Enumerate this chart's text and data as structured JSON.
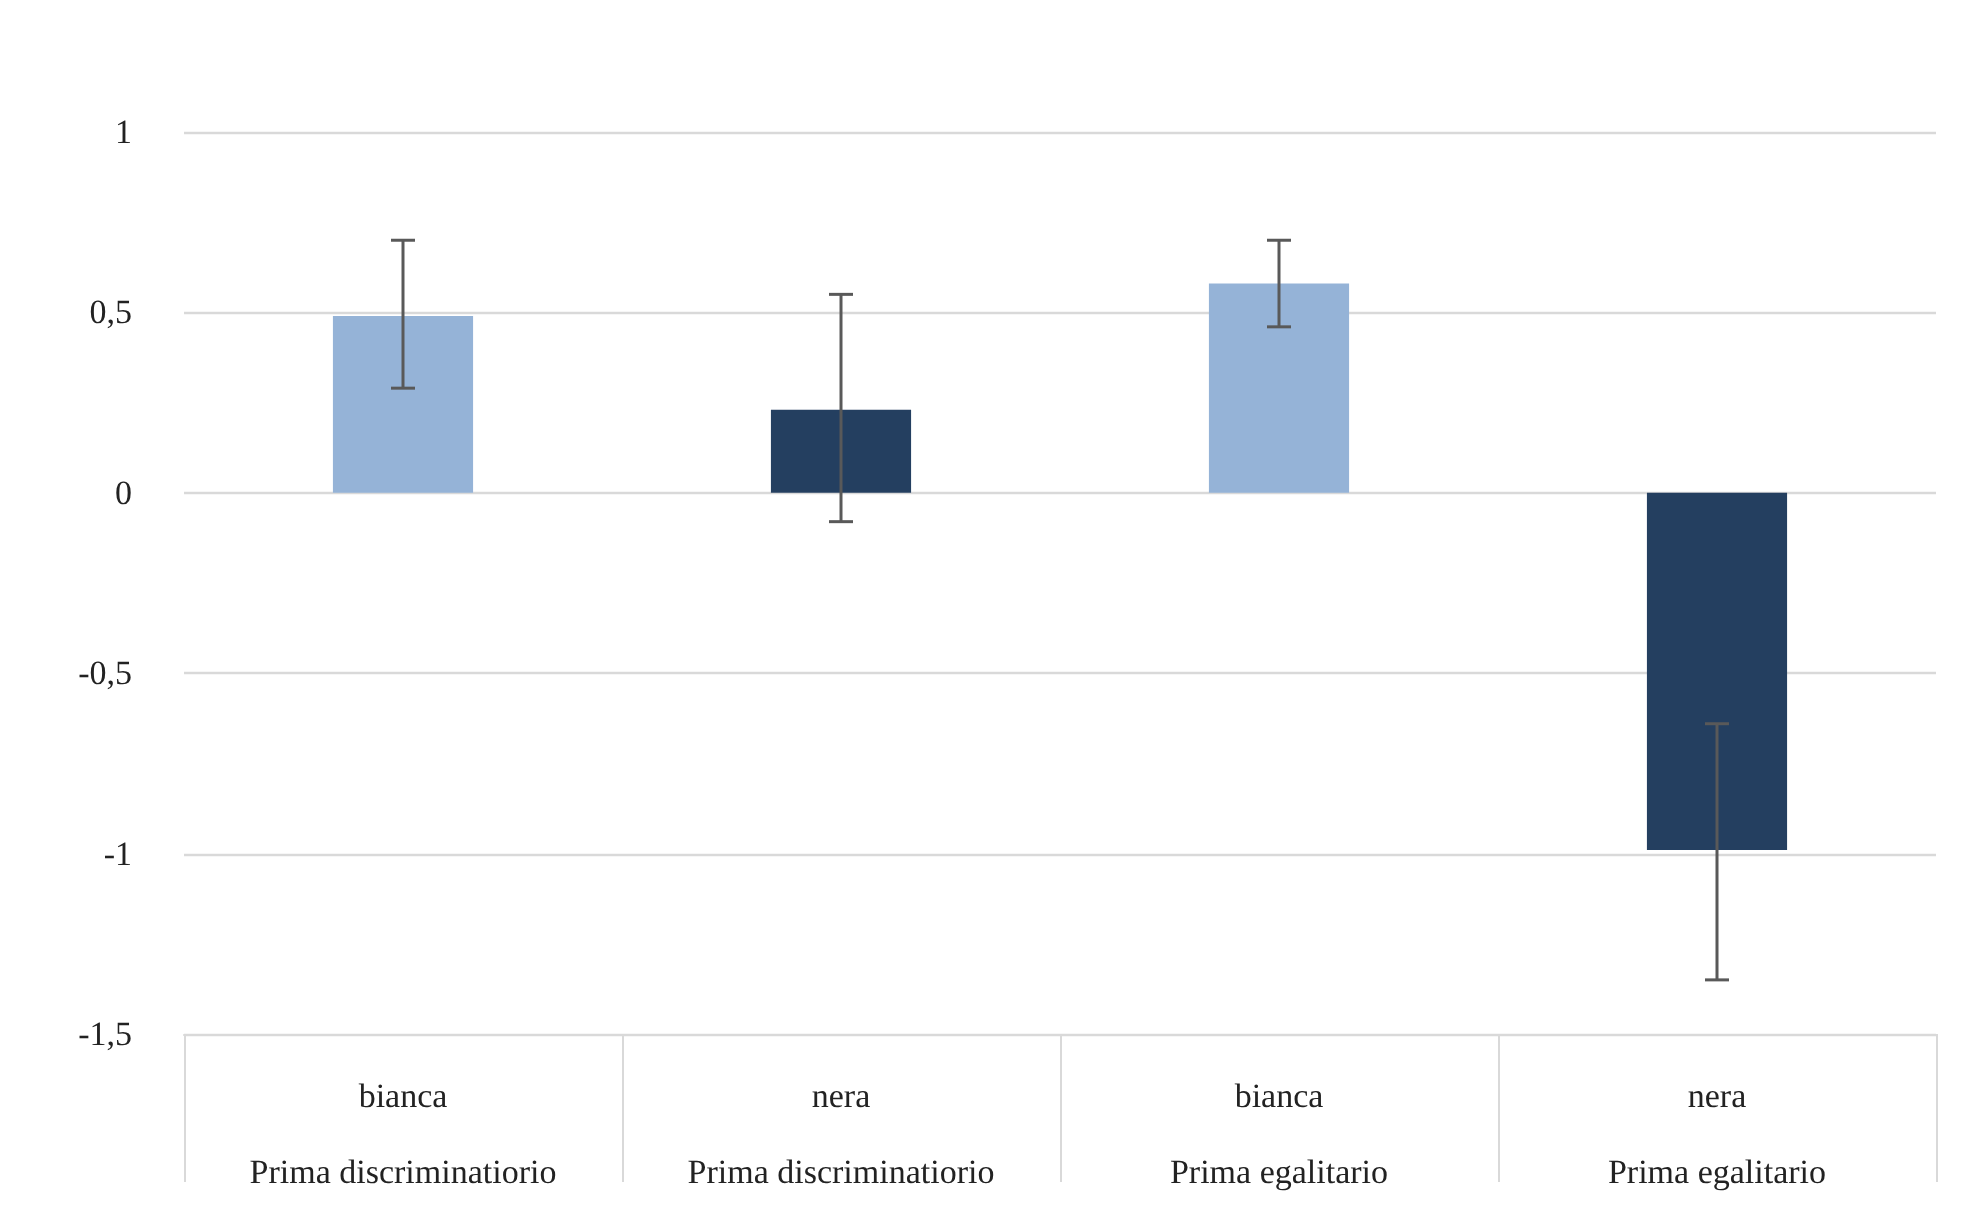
{
  "chart_data": {
    "type": "bar",
    "categories": [
      "bianca\nPrima discriminatiorio",
      "nera\nPrima discriminatiorio",
      "bianca\nPrima egalitario",
      "nera\nPrima egalitario"
    ],
    "values": [
      0.49,
      0.23,
      0.58,
      -0.99
    ],
    "colors": [
      "#95b3d7",
      "#243f60",
      "#95b3d7",
      "#243f60"
    ],
    "errors": [
      [
        0.29,
        0.7
      ],
      [
        -0.08,
        0.55
      ],
      [
        0.46,
        0.7
      ],
      [
        -1.35,
        -0.64
      ]
    ],
    "ylim": [
      -1.5,
      1
    ],
    "yticks": [
      {
        "value": -1.5,
        "label": "-1,5"
      },
      {
        "value": -1,
        "label": "-1"
      },
      {
        "value": -0.5,
        "label": "-0,5"
      },
      0,
      {
        "value": 0.5,
        "label": "0,5"
      },
      1
    ],
    "grid": "y"
  }
}
